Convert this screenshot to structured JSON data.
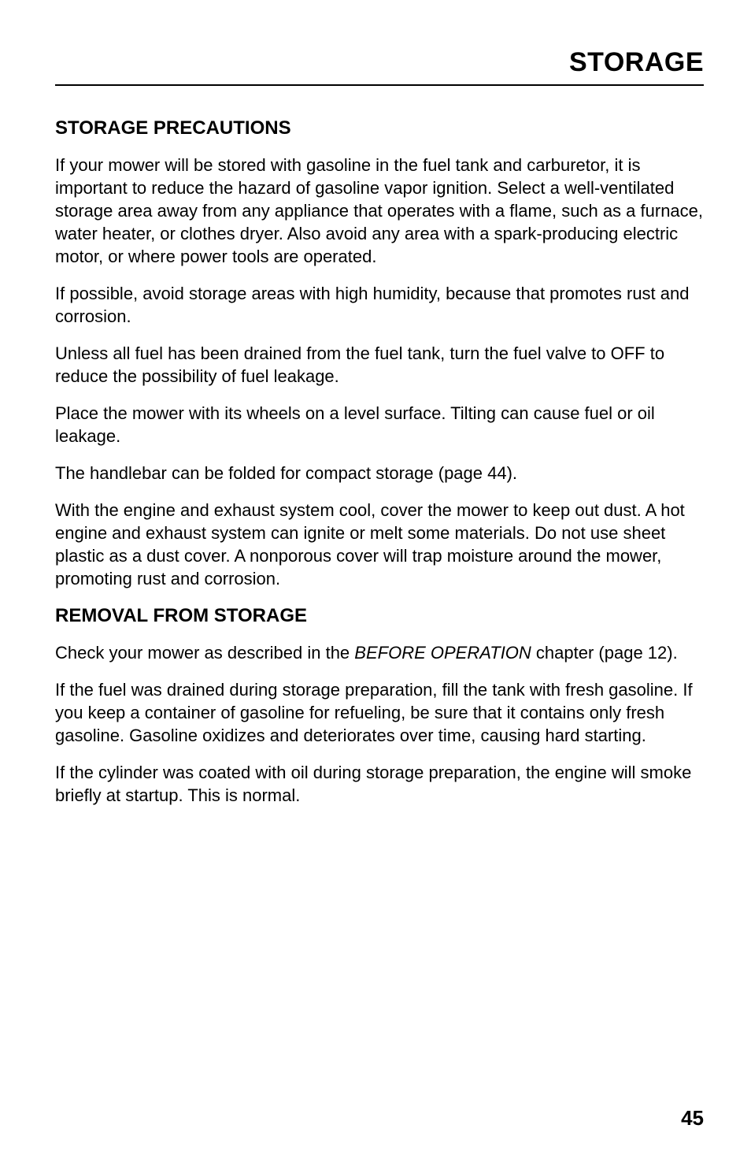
{
  "header": {
    "title": "STORAGE"
  },
  "sections": [
    {
      "heading": "STORAGE PRECAUTIONS",
      "paragraphs": [
        "If your mower will be stored with gasoline in the fuel tank and carburetor, it is important to reduce the hazard of gasoline vapor ignition. Select a well-ventilated storage area away from any appliance that operates with a flame, such as a furnace, water heater, or clothes dryer. Also avoid any area with a spark-producing electric motor, or where power tools are operated.",
        "If possible, avoid storage areas with high humidity, because that promotes rust and corrosion.",
        "Unless all fuel has been drained from the fuel tank, turn the fuel valve to OFF to reduce the possibility of fuel leakage.",
        "Place the mower with its wheels on a level surface. Tilting can cause fuel or oil leakage.",
        "The handlebar can be folded for compact storage (page 44).",
        "With the engine and exhaust system cool, cover the mower to keep out dust. A hot engine and exhaust system can ignite or melt some materials. Do not use sheet plastic as a dust cover. A nonporous cover will trap moisture around the mower, promoting rust and corrosion."
      ]
    },
    {
      "heading": "REMOVAL FROM STORAGE",
      "paragraphs": [
        {
          "parts": [
            {
              "text": "Check your mower as described in the ",
              "italic": false
            },
            {
              "text": "BEFORE OPERATION",
              "italic": true
            },
            {
              "text": " chapter (page 12).",
              "italic": false
            }
          ]
        },
        "If the fuel was drained during storage preparation, fill the tank with fresh gasoline. If you keep a container of gasoline for refueling, be sure that it contains only fresh gasoline. Gasoline oxidizes and deteriorates over time, causing hard starting.",
        "If the cylinder was coated with oil during storage preparation, the engine will smoke briefly at startup. This is normal."
      ]
    }
  ],
  "page_number": "45"
}
